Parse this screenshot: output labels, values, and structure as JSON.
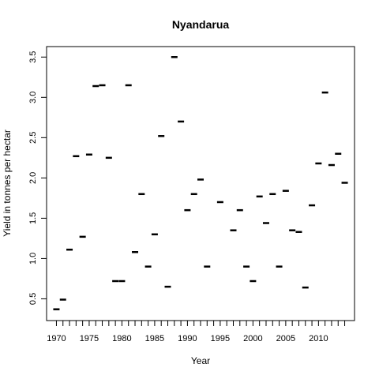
{
  "chart_data": {
    "type": "scatter",
    "title": "Nyandarua",
    "xlabel": "Year",
    "ylabel": "Yield in tonnes per hectar",
    "xlim": [
      1968.5,
      2015.5
    ],
    "ylim": [
      0.23,
      3.63
    ],
    "x_ticks": [
      1970,
      1975,
      1980,
      1985,
      1990,
      1995,
      2000,
      2005,
      2010
    ],
    "x_tick_labels": [
      "1970",
      "1975",
      "1980",
      "1985",
      "1990",
      "1995",
      "2000",
      "2005",
      "2010"
    ],
    "x_minor_ticks": [
      1970,
      1971,
      1972,
      1973,
      1974,
      1975,
      1976,
      1977,
      1978,
      1979,
      1980,
      1981,
      1982,
      1983,
      1984,
      1985,
      1986,
      1987,
      1988,
      1989,
      1990,
      1991,
      1992,
      1993,
      1994,
      1995,
      1996,
      1997,
      1998,
      1999,
      2000,
      2001,
      2002,
      2003,
      2004,
      2005,
      2006,
      2007,
      2008,
      2009,
      2010,
      2011,
      2012,
      2013,
      2014
    ],
    "y_ticks": [
      0.5,
      1.0,
      1.5,
      2.0,
      2.5,
      3.0,
      3.5
    ],
    "y_tick_labels": [
      "0.5",
      "1.0",
      "1.5",
      "2.0",
      "2.5",
      "3.0",
      "3.5"
    ],
    "grid": false,
    "x": [
      1970,
      1971,
      1972,
      1973,
      1974,
      1975,
      1976,
      1977,
      1978,
      1979,
      1980,
      1981,
      1982,
      1983,
      1984,
      1985,
      1986,
      1987,
      1988,
      1989,
      1990,
      1991,
      1992,
      1993,
      1995,
      1997,
      1998,
      1999,
      2000,
      2001,
      2002,
      2003,
      2004,
      2005,
      2006,
      2007,
      2008,
      2009,
      2010,
      2011,
      2012,
      2013,
      2014
    ],
    "y": [
      0.37,
      0.49,
      1.11,
      2.27,
      1.27,
      2.29,
      3.14,
      3.15,
      2.25,
      0.72,
      0.72,
      3.15,
      1.08,
      1.8,
      0.9,
      1.3,
      2.52,
      0.65,
      3.5,
      2.7,
      1.6,
      1.8,
      1.98,
      0.9,
      1.7,
      1.35,
      1.6,
      0.9,
      0.72,
      1.77,
      1.44,
      1.8,
      0.9,
      1.84,
      1.35,
      1.33,
      0.64,
      1.66,
      2.18,
      3.06,
      2.16,
      2.3,
      1.94
    ]
  }
}
